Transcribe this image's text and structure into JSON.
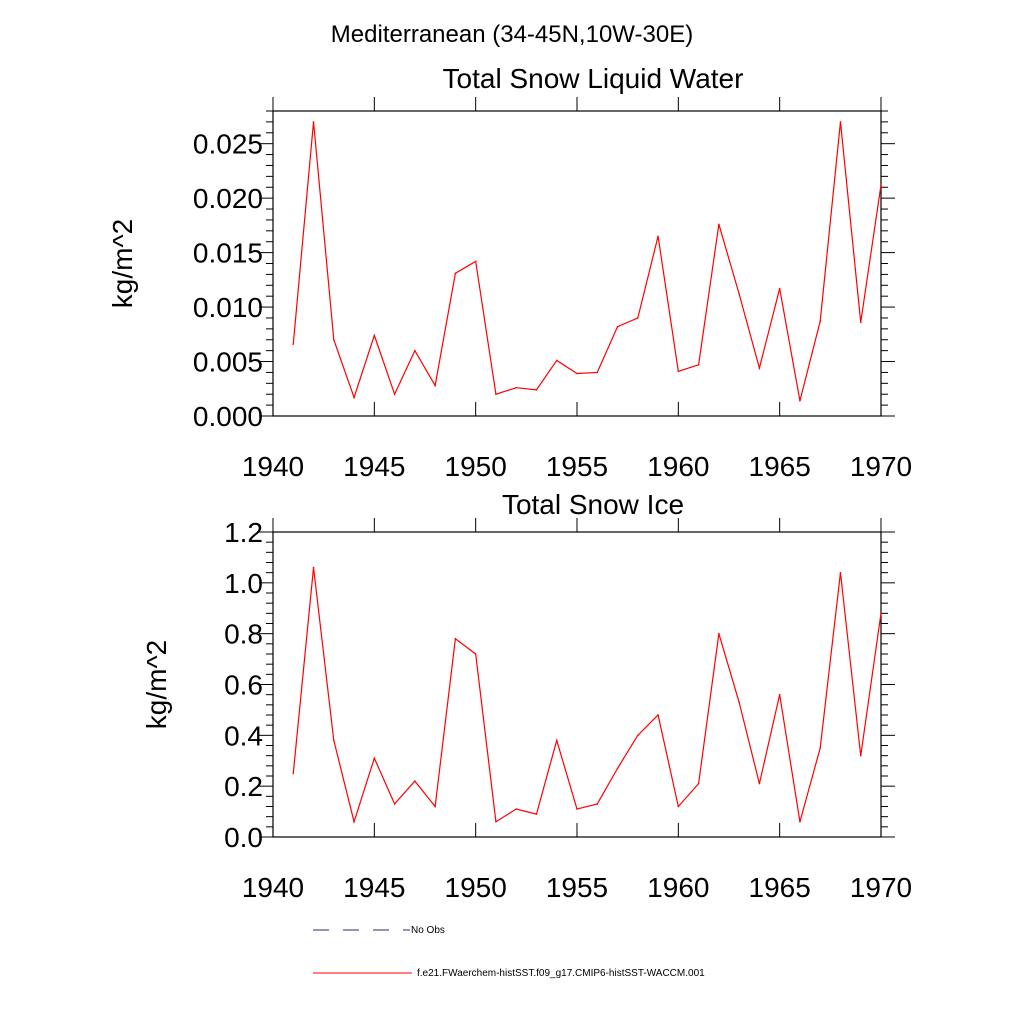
{
  "suptitle": "Mediterranean (34-45N,10W-30E)",
  "legend": {
    "entries": [
      {
        "label": "No Obs",
        "style": "dashed",
        "color": "#2a2a6a"
      },
      {
        "label": "f.e21.FWaerchem-histSST.f09_g17.CMIP6-histSST-WACCM.001",
        "style": "solid",
        "color": "#ff0000"
      }
    ]
  },
  "chart_data": [
    {
      "type": "line",
      "title": "Total Snow Liquid Water",
      "ylabel": "kg/m^2",
      "xlabel": "",
      "xlim": [
        1940,
        1970
      ],
      "ylim": [
        0.0,
        0.028
      ],
      "xticks": [
        1940,
        1945,
        1950,
        1955,
        1960,
        1965,
        1970
      ],
      "yticks": [
        0.0,
        0.005,
        0.01,
        0.015,
        0.02,
        0.025
      ],
      "ytick_labels": [
        "0.000",
        "0.005",
        "0.010",
        "0.015",
        "0.020",
        "0.025"
      ],
      "grid": false,
      "series": [
        {
          "color": "#ff0000",
          "x": [
            1941,
            1942,
            1943,
            1944,
            1945,
            1946,
            1947,
            1948,
            1949,
            1950,
            1951,
            1952,
            1953,
            1954,
            1955,
            1956,
            1957,
            1958,
            1959,
            1960,
            1961,
            1962,
            1963,
            1964,
            1965,
            1966,
            1967,
            1968,
            1969,
            1970
          ],
          "values": [
            0.0066,
            0.027,
            0.007,
            0.0017,
            0.0074,
            0.002,
            0.006,
            0.0028,
            0.0131,
            0.0142,
            0.002,
            0.0026,
            0.0024,
            0.0051,
            0.0039,
            0.004,
            0.0082,
            0.009,
            0.0165,
            0.0041,
            0.0047,
            0.0176,
            0.0112,
            0.0044,
            0.0117,
            0.0014,
            0.0087,
            0.027,
            0.0086,
            0.0212
          ]
        }
      ]
    },
    {
      "type": "line",
      "title": "Total Snow Ice",
      "ylabel": "kg/m^2",
      "xlabel": "",
      "xlim": [
        1940,
        1970
      ],
      "ylim": [
        0.0,
        1.2
      ],
      "xticks": [
        1940,
        1945,
        1950,
        1955,
        1960,
        1965,
        1970
      ],
      "yticks": [
        0.0,
        0.2,
        0.4,
        0.6,
        0.8,
        1.0,
        1.2
      ],
      "ytick_labels": [
        "0.0",
        "0.2",
        "0.4",
        "0.6",
        "0.8",
        "1.0",
        "1.2"
      ],
      "grid": false,
      "series": [
        {
          "color": "#ff0000",
          "x": [
            1941,
            1942,
            1943,
            1944,
            1945,
            1946,
            1947,
            1948,
            1949,
            1950,
            1951,
            1952,
            1953,
            1954,
            1955,
            1956,
            1957,
            1958,
            1959,
            1960,
            1961,
            1962,
            1963,
            1964,
            1965,
            1966,
            1967,
            1968,
            1969,
            1970
          ],
          "values": [
            0.25,
            1.06,
            0.38,
            0.06,
            0.31,
            0.13,
            0.22,
            0.12,
            0.78,
            0.72,
            0.06,
            0.11,
            0.09,
            0.38,
            0.11,
            0.13,
            0.27,
            0.4,
            0.48,
            0.12,
            0.21,
            0.8,
            0.53,
            0.21,
            0.56,
            0.06,
            0.35,
            1.04,
            0.32,
            0.88
          ]
        }
      ]
    }
  ]
}
